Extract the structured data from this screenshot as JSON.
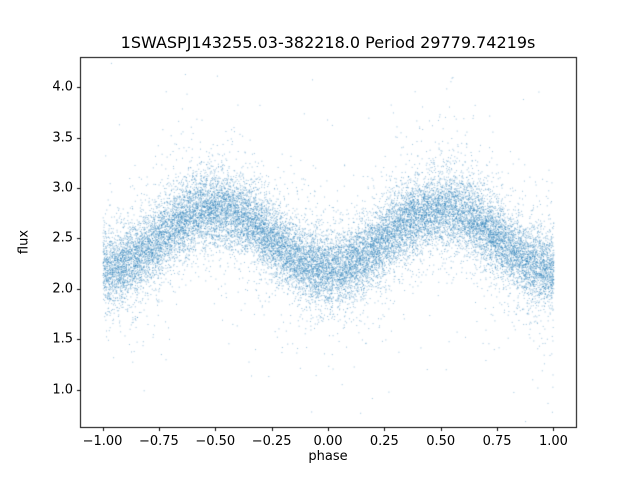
{
  "chart_data": {
    "type": "scatter",
    "title": "1SWASPJ143255.03-382218.0 Period 29779.74219s",
    "xlabel": "phase",
    "ylabel": "flux",
    "xlim": [
      -1.1,
      1.1
    ],
    "ylim": [
      0.63,
      4.3
    ],
    "x_ticks": [
      -1.0,
      -0.75,
      -0.5,
      -0.25,
      0.0,
      0.25,
      0.5,
      0.75,
      1.0
    ],
    "x_tick_labels": [
      "−1.00",
      "−0.75",
      "−0.50",
      "−0.25",
      "0.00",
      "0.25",
      "0.50",
      "0.75",
      "1.00"
    ],
    "y_ticks": [
      1.0,
      1.5,
      2.0,
      2.5,
      3.0,
      3.5,
      4.0
    ],
    "y_tick_labels": [
      "1.0",
      "1.5",
      "2.0",
      "2.5",
      "3.0",
      "3.5",
      "4.0"
    ],
    "marker_color": "#1f77b4",
    "marker_alpha": 0.45,
    "n_points": 22000,
    "model": {
      "description": "phased light curve: flux = baseline - amplitude*cos(2*pi*phase) + noise; maxima ~2.8 at phase ±0.5, minima ~2.2 at phase 0 and ±1; dense core scatter with sparse outliers from ~0.75 up to ~4.1",
      "baseline": 2.5,
      "amplitude": 0.3,
      "sigma_core": 0.17,
      "tail1_fraction": 0.18,
      "sigma_tail1": 0.33,
      "tail2_fraction": 0.03,
      "sigma_tail2": 0.65,
      "seed": 42
    }
  }
}
